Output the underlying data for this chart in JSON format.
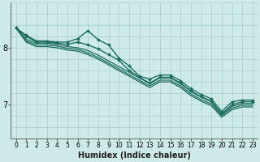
{
  "xlabel": "Humidex (Indice chaleur)",
  "ylabel": "",
  "background_color": "#ceeae8",
  "grid_color": "#aad4d0",
  "line_color": "#1a6b60",
  "marker_color": "#1a6b60",
  "xlim": [
    -0.5,
    23.5
  ],
  "ylim": [
    6.4,
    8.8
  ],
  "yticks": [
    7,
    8
  ],
  "xticks": [
    0,
    1,
    2,
    3,
    4,
    5,
    6,
    7,
    8,
    9,
    10,
    11,
    12,
    13,
    14,
    15,
    16,
    17,
    18,
    19,
    20,
    21,
    22,
    23
  ],
  "lines": [
    {
      "y": [
        8.35,
        8.22,
        8.12,
        8.12,
        8.1,
        8.1,
        8.16,
        8.3,
        8.14,
        8.05,
        7.82,
        7.68,
        7.5,
        7.45,
        7.52,
        7.52,
        7.42,
        7.28,
        7.18,
        7.1,
        6.88,
        7.05,
        7.08,
        7.08
      ],
      "markers": true,
      "linewidth": 1.0
    },
    {
      "y": [
        8.35,
        8.2,
        8.1,
        8.1,
        8.08,
        8.06,
        8.1,
        8.05,
        7.98,
        7.88,
        7.78,
        7.6,
        7.48,
        7.38,
        7.48,
        7.48,
        7.38,
        7.24,
        7.14,
        7.06,
        6.84,
        7.0,
        7.05,
        7.05
      ],
      "markers": true,
      "linewidth": 1.0
    },
    {
      "y": [
        8.35,
        8.15,
        8.08,
        8.08,
        8.06,
        8.02,
        8.0,
        7.95,
        7.87,
        7.77,
        7.67,
        7.57,
        7.47,
        7.37,
        7.47,
        7.47,
        7.37,
        7.23,
        7.13,
        7.05,
        6.83,
        6.97,
        7.02,
        7.02
      ],
      "markers": false,
      "linewidth": 0.9
    },
    {
      "y": [
        8.35,
        8.12,
        8.05,
        8.05,
        8.03,
        7.99,
        7.97,
        7.91,
        7.83,
        7.73,
        7.63,
        7.53,
        7.43,
        7.33,
        7.43,
        7.43,
        7.33,
        7.19,
        7.09,
        7.01,
        6.81,
        6.94,
        6.99,
        6.99
      ],
      "markers": false,
      "linewidth": 0.9
    },
    {
      "y": [
        8.35,
        8.1,
        8.02,
        8.02,
        8.0,
        7.96,
        7.94,
        7.88,
        7.8,
        7.7,
        7.6,
        7.5,
        7.4,
        7.3,
        7.4,
        7.4,
        7.3,
        7.16,
        7.06,
        6.98,
        6.78,
        6.91,
        6.96,
        6.96
      ],
      "markers": false,
      "linewidth": 0.9
    }
  ],
  "fontsize_xlabel": 7,
  "fontsize_yticks": 7,
  "fontsize_xticks": 5.5
}
